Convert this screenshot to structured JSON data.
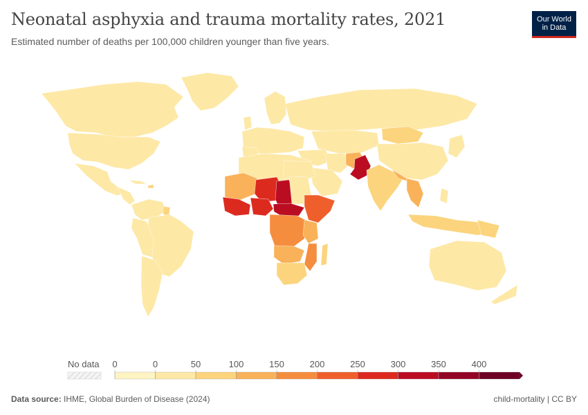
{
  "title": "Neonatal asphyxia and trauma mortality rates, 2021",
  "subtitle": "Estimated number of deaths per 100,000 children younger than five years.",
  "logo": {
    "line1": "Our World",
    "line2": "in Data"
  },
  "legend": {
    "no_data_label": "No data",
    "ticks": [
      "0",
      "0",
      "50",
      "100",
      "150",
      "200",
      "250",
      "300",
      "350",
      "400"
    ],
    "bins": [
      {
        "from": 0,
        "to": 0,
        "color": "#fef3c2"
      },
      {
        "from": 0,
        "to": 50,
        "color": "#fde8a6"
      },
      {
        "from": 50,
        "to": 100,
        "color": "#fbd47d"
      },
      {
        "from": 100,
        "to": 150,
        "color": "#f9b25a"
      },
      {
        "from": 150,
        "to": 200,
        "color": "#f58d3e"
      },
      {
        "from": 200,
        "to": 250,
        "color": "#ef5f2c"
      },
      {
        "from": 250,
        "to": 300,
        "color": "#dd2a1f"
      },
      {
        "from": 300,
        "to": 350,
        "color": "#bb0d22"
      },
      {
        "from": 350,
        "to": 400,
        "color": "#940426"
      },
      {
        "from": 400,
        "to": 450,
        "color": "#6d0024"
      }
    ]
  },
  "footer": {
    "source_label": "Data source:",
    "source_text": "IHME, Global Burden of Disease (2024)",
    "right_text": "child-mortality | CC BY"
  }
}
